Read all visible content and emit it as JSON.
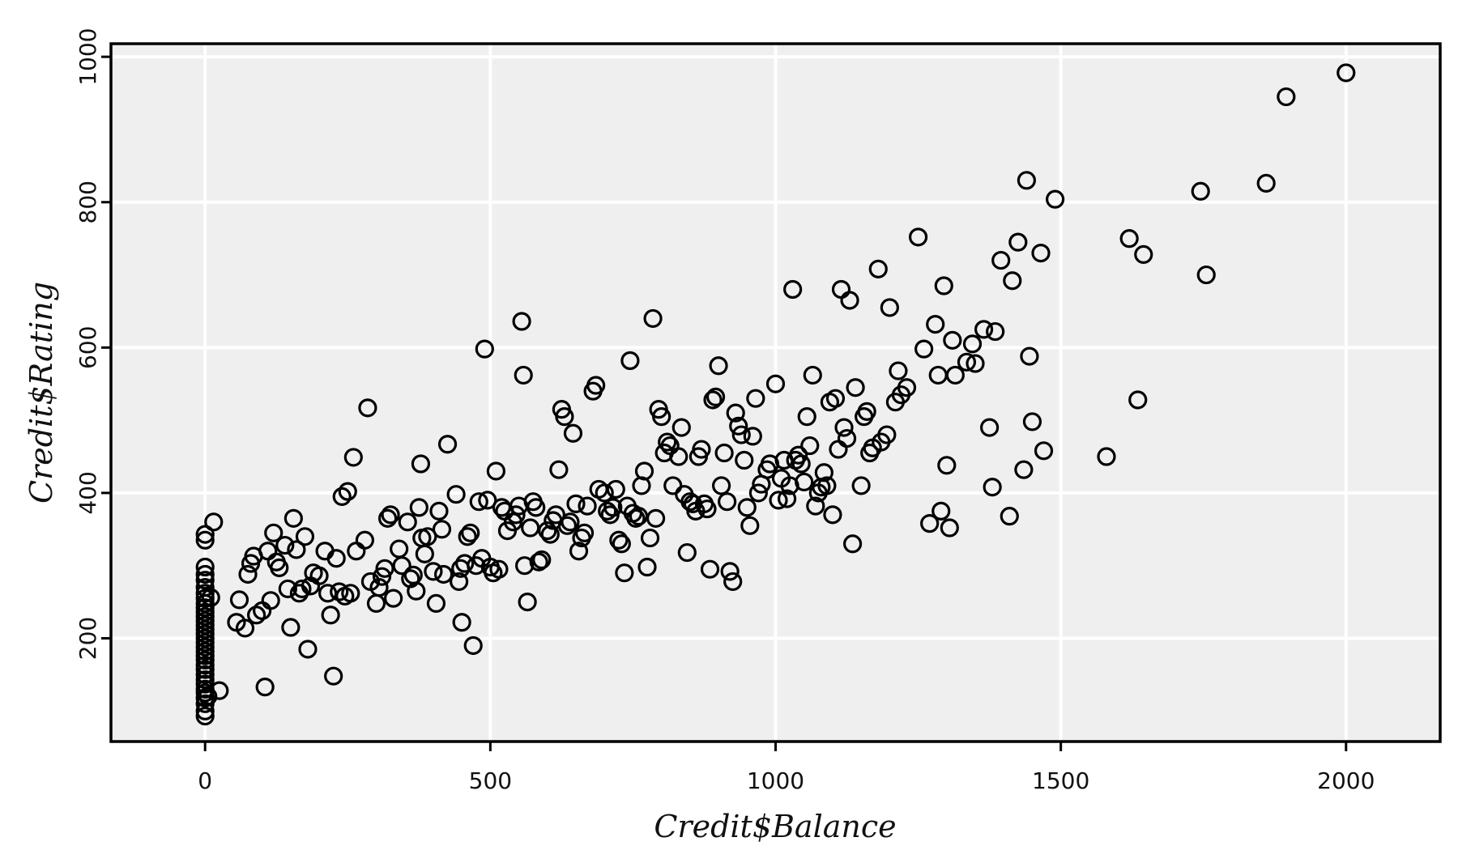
{
  "chart_data": {
    "type": "scatter",
    "title": "",
    "xlabel": "Credit$Balance",
    "ylabel": "Credit$Rating",
    "xlim": [
      -165,
      2165
    ],
    "ylim": [
      58,
      1018
    ],
    "xticks": [
      0,
      500,
      1000,
      1500,
      2000
    ],
    "yticks": [
      200,
      400,
      600,
      800,
      1000
    ],
    "xtick_labels": [
      "0",
      "500",
      "1000",
      "1500",
      "2000"
    ],
    "ytick_labels": [
      "200",
      "400",
      "600",
      "800",
      "1000"
    ],
    "grid": true,
    "points": [
      [
        0,
        93
      ],
      [
        0,
        100
      ],
      [
        0,
        110
      ],
      [
        0,
        118
      ],
      [
        0,
        125
      ],
      [
        0,
        130
      ],
      [
        0,
        137
      ],
      [
        0,
        143
      ],
      [
        0,
        150
      ],
      [
        0,
        157
      ],
      [
        0,
        163
      ],
      [
        0,
        170
      ],
      [
        0,
        176
      ],
      [
        0,
        182
      ],
      [
        0,
        188
      ],
      [
        0,
        194
      ],
      [
        0,
        200
      ],
      [
        0,
        206
      ],
      [
        0,
        212
      ],
      [
        0,
        218
      ],
      [
        0,
        224
      ],
      [
        0,
        230
      ],
      [
        0,
        236
      ],
      [
        0,
        242
      ],
      [
        0,
        248
      ],
      [
        0,
        255
      ],
      [
        0,
        262
      ],
      [
        0,
        270
      ],
      [
        0,
        280
      ],
      [
        0,
        288
      ],
      [
        0,
        298
      ],
      [
        0,
        335
      ],
      [
        0,
        343
      ],
      [
        5,
        120
      ],
      [
        10,
        256
      ],
      [
        15,
        360
      ],
      [
        25,
        128
      ],
      [
        55,
        222
      ],
      [
        60,
        253
      ],
      [
        70,
        214
      ],
      [
        75,
        288
      ],
      [
        80,
        303
      ],
      [
        85,
        313
      ],
      [
        90,
        232
      ],
      [
        100,
        238
      ],
      [
        105,
        133
      ],
      [
        110,
        320
      ],
      [
        115,
        252
      ],
      [
        120,
        345
      ],
      [
        125,
        305
      ],
      [
        130,
        297
      ],
      [
        140,
        328
      ],
      [
        145,
        268
      ],
      [
        150,
        215
      ],
      [
        155,
        365
      ],
      [
        160,
        322
      ],
      [
        165,
        262
      ],
      [
        170,
        268
      ],
      [
        175,
        340
      ],
      [
        180,
        185
      ],
      [
        185,
        272
      ],
      [
        190,
        290
      ],
      [
        200,
        286
      ],
      [
        210,
        320
      ],
      [
        215,
        262
      ],
      [
        220,
        232
      ],
      [
        225,
        148
      ],
      [
        230,
        310
      ],
      [
        235,
        264
      ],
      [
        240,
        395
      ],
      [
        245,
        258
      ],
      [
        250,
        402
      ],
      [
        255,
        262
      ],
      [
        260,
        449
      ],
      [
        265,
        320
      ],
      [
        280,
        335
      ],
      [
        285,
        517
      ],
      [
        290,
        278
      ],
      [
        300,
        248
      ],
      [
        305,
        270
      ],
      [
        310,
        285
      ],
      [
        315,
        296
      ],
      [
        320,
        365
      ],
      [
        325,
        370
      ],
      [
        330,
        255
      ],
      [
        340,
        323
      ],
      [
        345,
        300
      ],
      [
        355,
        360
      ],
      [
        360,
        282
      ],
      [
        365,
        287
      ],
      [
        370,
        265
      ],
      [
        375,
        380
      ],
      [
        378,
        440
      ],
      [
        380,
        338
      ],
      [
        385,
        316
      ],
      [
        390,
        340
      ],
      [
        400,
        292
      ],
      [
        405,
        248
      ],
      [
        410,
        375
      ],
      [
        415,
        350
      ],
      [
        418,
        288
      ],
      [
        425,
        467
      ],
      [
        440,
        398
      ],
      [
        445,
        278
      ],
      [
        448,
        296
      ],
      [
        450,
        222
      ],
      [
        455,
        303
      ],
      [
        460,
        340
      ],
      [
        465,
        345
      ],
      [
        470,
        190
      ],
      [
        475,
        300
      ],
      [
        480,
        388
      ],
      [
        485,
        310
      ],
      [
        490,
        598
      ],
      [
        495,
        390
      ],
      [
        500,
        298
      ],
      [
        505,
        290
      ],
      [
        510,
        430
      ],
      [
        515,
        295
      ],
      [
        520,
        380
      ],
      [
        525,
        375
      ],
      [
        530,
        348
      ],
      [
        540,
        360
      ],
      [
        545,
        370
      ],
      [
        550,
        382
      ],
      [
        555,
        636
      ],
      [
        558,
        562
      ],
      [
        560,
        300
      ],
      [
        565,
        250
      ],
      [
        570,
        352
      ],
      [
        575,
        388
      ],
      [
        580,
        380
      ],
      [
        585,
        305
      ],
      [
        590,
        308
      ],
      [
        600,
        348
      ],
      [
        605,
        343
      ],
      [
        610,
        362
      ],
      [
        615,
        370
      ],
      [
        620,
        432
      ],
      [
        625,
        515
      ],
      [
        630,
        505
      ],
      [
        635,
        355
      ],
      [
        640,
        360
      ],
      [
        645,
        482
      ],
      [
        650,
        385
      ],
      [
        655,
        320
      ],
      [
        660,
        338
      ],
      [
        665,
        345
      ],
      [
        670,
        382
      ],
      [
        680,
        540
      ],
      [
        685,
        548
      ],
      [
        690,
        405
      ],
      [
        700,
        400
      ],
      [
        705,
        375
      ],
      [
        710,
        370
      ],
      [
        715,
        380
      ],
      [
        720,
        405
      ],
      [
        725,
        335
      ],
      [
        730,
        330
      ],
      [
        735,
        290
      ],
      [
        740,
        382
      ],
      [
        745,
        582
      ],
      [
        750,
        372
      ],
      [
        755,
        365
      ],
      [
        760,
        368
      ],
      [
        765,
        410
      ],
      [
        770,
        430
      ],
      [
        775,
        298
      ],
      [
        780,
        338
      ],
      [
        785,
        640
      ],
      [
        790,
        365
      ],
      [
        795,
        515
      ],
      [
        800,
        505
      ],
      [
        805,
        455
      ],
      [
        810,
        470
      ],
      [
        815,
        465
      ],
      [
        820,
        410
      ],
      [
        830,
        450
      ],
      [
        835,
        490
      ],
      [
        840,
        398
      ],
      [
        845,
        318
      ],
      [
        850,
        388
      ],
      [
        855,
        385
      ],
      [
        860,
        375
      ],
      [
        865,
        450
      ],
      [
        870,
        460
      ],
      [
        875,
        385
      ],
      [
        880,
        378
      ],
      [
        885,
        295
      ],
      [
        890,
        528
      ],
      [
        895,
        532
      ],
      [
        900,
        575
      ],
      [
        905,
        410
      ],
      [
        910,
        455
      ],
      [
        915,
        388
      ],
      [
        920,
        292
      ],
      [
        925,
        278
      ],
      [
        930,
        510
      ],
      [
        935,
        492
      ],
      [
        940,
        480
      ],
      [
        945,
        445
      ],
      [
        950,
        380
      ],
      [
        955,
        355
      ],
      [
        960,
        478
      ],
      [
        965,
        530
      ],
      [
        970,
        400
      ],
      [
        975,
        412
      ],
      [
        985,
        432
      ],
      [
        990,
        440
      ],
      [
        1000,
        550
      ],
      [
        1005,
        390
      ],
      [
        1010,
        420
      ],
      [
        1015,
        445
      ],
      [
        1020,
        392
      ],
      [
        1025,
        410
      ],
      [
        1030,
        680
      ],
      [
        1035,
        445
      ],
      [
        1040,
        452
      ],
      [
        1045,
        440
      ],
      [
        1050,
        415
      ],
      [
        1055,
        505
      ],
      [
        1060,
        465
      ],
      [
        1065,
        562
      ],
      [
        1070,
        382
      ],
      [
        1075,
        400
      ],
      [
        1080,
        408
      ],
      [
        1085,
        428
      ],
      [
        1090,
        410
      ],
      [
        1095,
        525
      ],
      [
        1100,
        370
      ],
      [
        1105,
        530
      ],
      [
        1110,
        460
      ],
      [
        1115,
        680
      ],
      [
        1120,
        490
      ],
      [
        1125,
        475
      ],
      [
        1130,
        665
      ],
      [
        1135,
        330
      ],
      [
        1140,
        545
      ],
      [
        1150,
        410
      ],
      [
        1155,
        505
      ],
      [
        1160,
        512
      ],
      [
        1165,
        455
      ],
      [
        1170,
        462
      ],
      [
        1180,
        708
      ],
      [
        1185,
        470
      ],
      [
        1195,
        480
      ],
      [
        1200,
        655
      ],
      [
        1210,
        525
      ],
      [
        1215,
        568
      ],
      [
        1220,
        535
      ],
      [
        1230,
        545
      ],
      [
        1250,
        752
      ],
      [
        1260,
        598
      ],
      [
        1270,
        358
      ],
      [
        1280,
        632
      ],
      [
        1285,
        562
      ],
      [
        1290,
        375
      ],
      [
        1295,
        685
      ],
      [
        1300,
        438
      ],
      [
        1305,
        352
      ],
      [
        1310,
        610
      ],
      [
        1315,
        562
      ],
      [
        1335,
        580
      ],
      [
        1345,
        605
      ],
      [
        1350,
        578
      ],
      [
        1365,
        625
      ],
      [
        1375,
        490
      ],
      [
        1380,
        408
      ],
      [
        1385,
        622
      ],
      [
        1395,
        720
      ],
      [
        1410,
        368
      ],
      [
        1415,
        692
      ],
      [
        1425,
        745
      ],
      [
        1435,
        432
      ],
      [
        1440,
        830
      ],
      [
        1445,
        588
      ],
      [
        1450,
        498
      ],
      [
        1465,
        730
      ],
      [
        1470,
        458
      ],
      [
        1490,
        804
      ],
      [
        1580,
        450
      ],
      [
        1620,
        750
      ],
      [
        1635,
        528
      ],
      [
        1645,
        728
      ],
      [
        1745,
        815
      ],
      [
        1755,
        700
      ],
      [
        1860,
        826
      ],
      [
        1895,
        945
      ],
      [
        2000,
        978
      ]
    ]
  }
}
